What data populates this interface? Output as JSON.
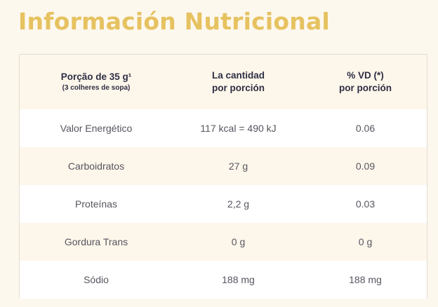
{
  "title": "Información Nutricional",
  "header": {
    "col1_main": "Porção de 35 g¹",
    "col1_sub": "(3 colheres de sopa)",
    "col2_line1": "La cantidad",
    "col2_line2": "por porción",
    "col3_line1": "% VD (*)",
    "col3_line2": "por porción"
  },
  "rows": [
    {
      "name": "Valor Energético",
      "amount": "117 kcal = 490 kJ",
      "dv": "0.06"
    },
    {
      "name": "Carboidratos",
      "amount": "27 g",
      "dv": "0.09"
    },
    {
      "name": "Proteínas",
      "amount": "2,2 g",
      "dv": "0.03"
    },
    {
      "name": "Gordura Trans",
      "amount": "0 g",
      "dv": "0 g"
    },
    {
      "name": "Sódio",
      "amount": "188 mg",
      "dv": "188 mg"
    }
  ],
  "colors": {
    "title": "#e6c260",
    "background": "#fdf8ee",
    "row_white": "#ffffff",
    "row_cream": "#fdf6ea",
    "header_text": "#2e2e45"
  }
}
